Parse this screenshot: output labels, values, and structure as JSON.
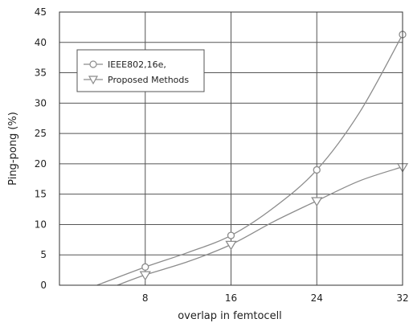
{
  "chart_data": {
    "type": "line",
    "title": "",
    "xlabel": "overlap in femtocell",
    "ylabel": "Ping-pong (%)",
    "xlim": [
      0,
      32
    ],
    "ylim": [
      0,
      45
    ],
    "xticks": [
      8,
      16,
      24,
      32
    ],
    "yticks": [
      0,
      5,
      10,
      15,
      20,
      25,
      30,
      35,
      40,
      45
    ],
    "grid": true,
    "legend_position": "top-left",
    "series": [
      {
        "name": "IEEE802,16e,",
        "marker": "circle",
        "color": "#8c8c8c",
        "points": [
          [
            8,
            3.0
          ],
          [
            16,
            8.2
          ],
          [
            24,
            19.0
          ],
          [
            32,
            41.3
          ]
        ],
        "curve": [
          [
            3.5,
            0
          ],
          [
            8,
            3.0
          ],
          [
            12,
            5.4
          ],
          [
            16,
            8.2
          ],
          [
            20,
            12.8
          ],
          [
            24,
            19.0
          ],
          [
            28,
            28.5
          ],
          [
            32,
            41.3
          ]
        ]
      },
      {
        "name": "Proposed Methods",
        "marker": "triangle-down",
        "color": "#8c8c8c",
        "points": [
          [
            8,
            1.7
          ],
          [
            16,
            6.7
          ],
          [
            24,
            13.9
          ],
          [
            32,
            19.5
          ]
        ],
        "curve": [
          [
            5.4,
            0
          ],
          [
            8,
            1.7
          ],
          [
            12,
            3.9
          ],
          [
            16,
            6.7
          ],
          [
            20,
            10.5
          ],
          [
            24,
            13.9
          ],
          [
            28,
            17.2
          ],
          [
            32,
            19.5
          ]
        ]
      }
    ]
  }
}
